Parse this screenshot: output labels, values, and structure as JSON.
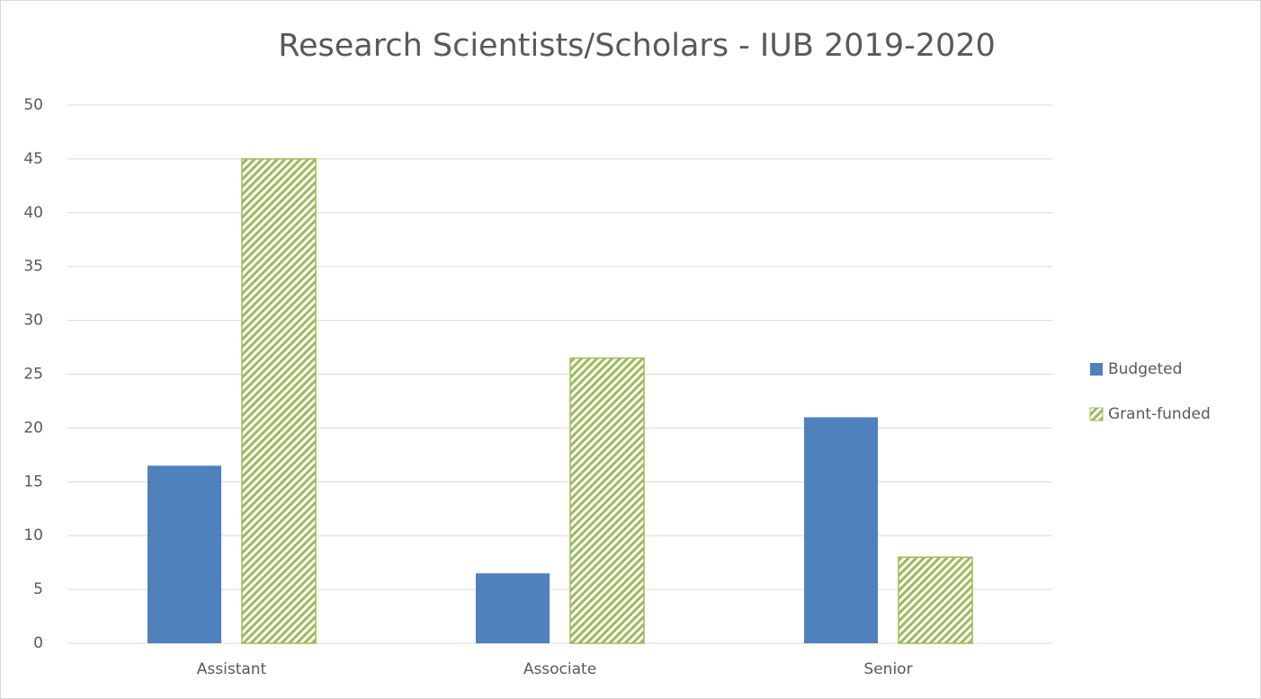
{
  "chart_data": {
    "type": "bar",
    "title": "Research Scientists/Scholars - IUB 2019-2020",
    "categories": [
      "Assistant",
      "Associate",
      "Senior"
    ],
    "series": [
      {
        "name": "Budgeted",
        "color": "#4f81bd",
        "values": [
          16.5,
          6.5,
          21
        ]
      },
      {
        "name": "Grant-funded",
        "color": "#9bbb59",
        "pattern": "hatch",
        "values": [
          45,
          26.5,
          8
        ]
      }
    ],
    "ylim": [
      0,
      50
    ],
    "yticks": [
      0,
      5,
      10,
      15,
      20,
      25,
      30,
      35,
      40,
      45,
      50
    ],
    "grid": true,
    "legend": "right"
  }
}
